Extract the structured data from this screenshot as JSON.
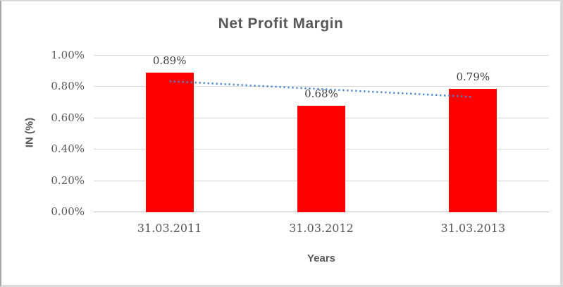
{
  "chart_data": {
    "type": "bar",
    "title": "Net Profit Margin",
    "categories": [
      "31.03.2011",
      "31.03.2012",
      "31.03.2013"
    ],
    "values": [
      0.89,
      0.68,
      0.79
    ],
    "data_labels": [
      "0.89%",
      "0.68%",
      "0.79%"
    ],
    "xlabel": "Years",
    "ylabel": "IN (%)",
    "ylim": [
      0,
      1.0
    ],
    "yticks": [
      0,
      0.2,
      0.4,
      0.6,
      0.8,
      1.0
    ],
    "ytick_labels": [
      "0.00%",
      "0.20%",
      "0.40%",
      "0.60%",
      "0.80%",
      "1.00%"
    ],
    "grid": true,
    "legend": "none",
    "bar_color": "#FF0000",
    "gridline_color": "#D9D9D9",
    "axis_line_color": "#BFBFBF",
    "title_color": "#595959",
    "tick_label_color": "#595959",
    "data_label_color": "#404040",
    "trendline": {
      "type": "linear",
      "style": "dotted",
      "color": "#4A86C8"
    }
  }
}
